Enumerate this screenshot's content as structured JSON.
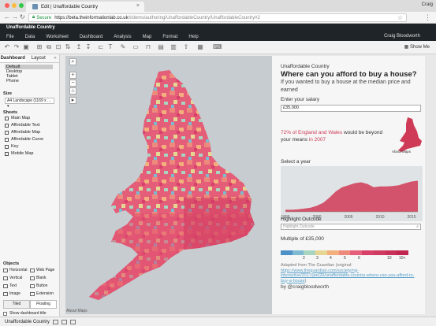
{
  "browser": {
    "tab_title": "Edit | Unaffordable Country",
    "user": "Craig",
    "secure_label": "Secure",
    "url_host": "https://beta.theinformationlab.co.uk",
    "url_path": "/t/demo/authoring/UnaffordableCountry/UnaffordableCountry#2"
  },
  "tableau": {
    "workbook_title": "Unaffordable Country",
    "menus": [
      "File",
      "Data",
      "Worksheet",
      "Dashboard",
      "Analysis",
      "Map",
      "Format",
      "Help"
    ],
    "user": "Craig Bloodworth",
    "show_me": "Show Me"
  },
  "left_panel": {
    "tabs": [
      "Dashboard",
      "Layout"
    ],
    "devices": [
      "Default",
      "Desktop",
      "Tablet",
      "Phone"
    ],
    "size_heading": "Size",
    "size_value": "A4 Landscape (1169 x ...",
    "sheets_heading": "Sheets",
    "sheets": [
      "Main Map",
      "Affordable Text",
      "Affordable Map",
      "Affordable Curve",
      "Key",
      "Mobile Map"
    ],
    "objects_heading": "Objects",
    "objects": [
      "Horizontal",
      "Web Page",
      "Vertical",
      "Blank",
      "Text",
      "Button",
      "Image",
      "Extension"
    ],
    "tiled": "Tiled",
    "floating": "Floating",
    "show_title": "Show dashboard title"
  },
  "map": {
    "credit": "About Maps"
  },
  "overlay": {
    "app_name": "Unaffordable Country",
    "title": "Where can you afford to buy a house?",
    "subtitle": "If you wanted to buy a house at the median price and earned",
    "salary_label": "Enter your salary",
    "salary_value": "£35,000",
    "stat_pct": "72% of England and Wales",
    "stat_mid": " would be beyond your means ",
    "stat_year": "in 2007",
    "inset_caption": "About Maps",
    "year_label": "Select a year",
    "highlight_label": "Highlight Outcode",
    "highlight_placeholder": "Highlight Outcode",
    "multiple_label": "Multiple of £35,000",
    "credit_text": "Adapted from The Guardian (original: ",
    "credit_link": "https://www.theguardian.com/society/ng-interactive/2017/jan/26/unaffordable-country-where-can-you-afford-to-buy-a-house",
    "credit_close": ")",
    "author": "by @craigbloodworth"
  },
  "chart_data": {
    "type": "area",
    "x": [
      1995,
      1996,
      1997,
      1998,
      1999,
      2000,
      2001,
      2002,
      2003,
      2004,
      2005,
      2006,
      2007,
      2008,
      2009,
      2010,
      2011,
      2012,
      2013,
      2014,
      2015,
      2016
    ],
    "series": [
      {
        "values": [
          5,
          5,
          6,
          8,
          10,
          15,
          22,
          35,
          50,
          60,
          65,
          70,
          72,
          68,
          60,
          62,
          62,
          63,
          65,
          70,
          74,
          76
        ]
      }
    ],
    "xticks": [
      "1995",
      "2000",
      "2005",
      "2010",
      "2015"
    ],
    "ylim": [
      0,
      100
    ],
    "xlabel": "",
    "ylabel": "",
    "title": "",
    "grid": false
  },
  "legend": {
    "colors": [
      "#4e90c8",
      "#7dbad2",
      "#a9d4c2",
      "#e7d693",
      "#f3b07c",
      "#ed8a7b",
      "#e45d79",
      "#d8406a",
      "#cf3a60",
      "#c8305a",
      "#c0244f"
    ],
    "labels": [
      "2",
      "3",
      "4",
      "5",
      "6",
      "10",
      "10+"
    ]
  },
  "colors": {
    "accent_red": "#cf3a56",
    "tableau_dark": "#1f2428"
  },
  "bottom": {
    "tab": "Unaffordable Country"
  }
}
